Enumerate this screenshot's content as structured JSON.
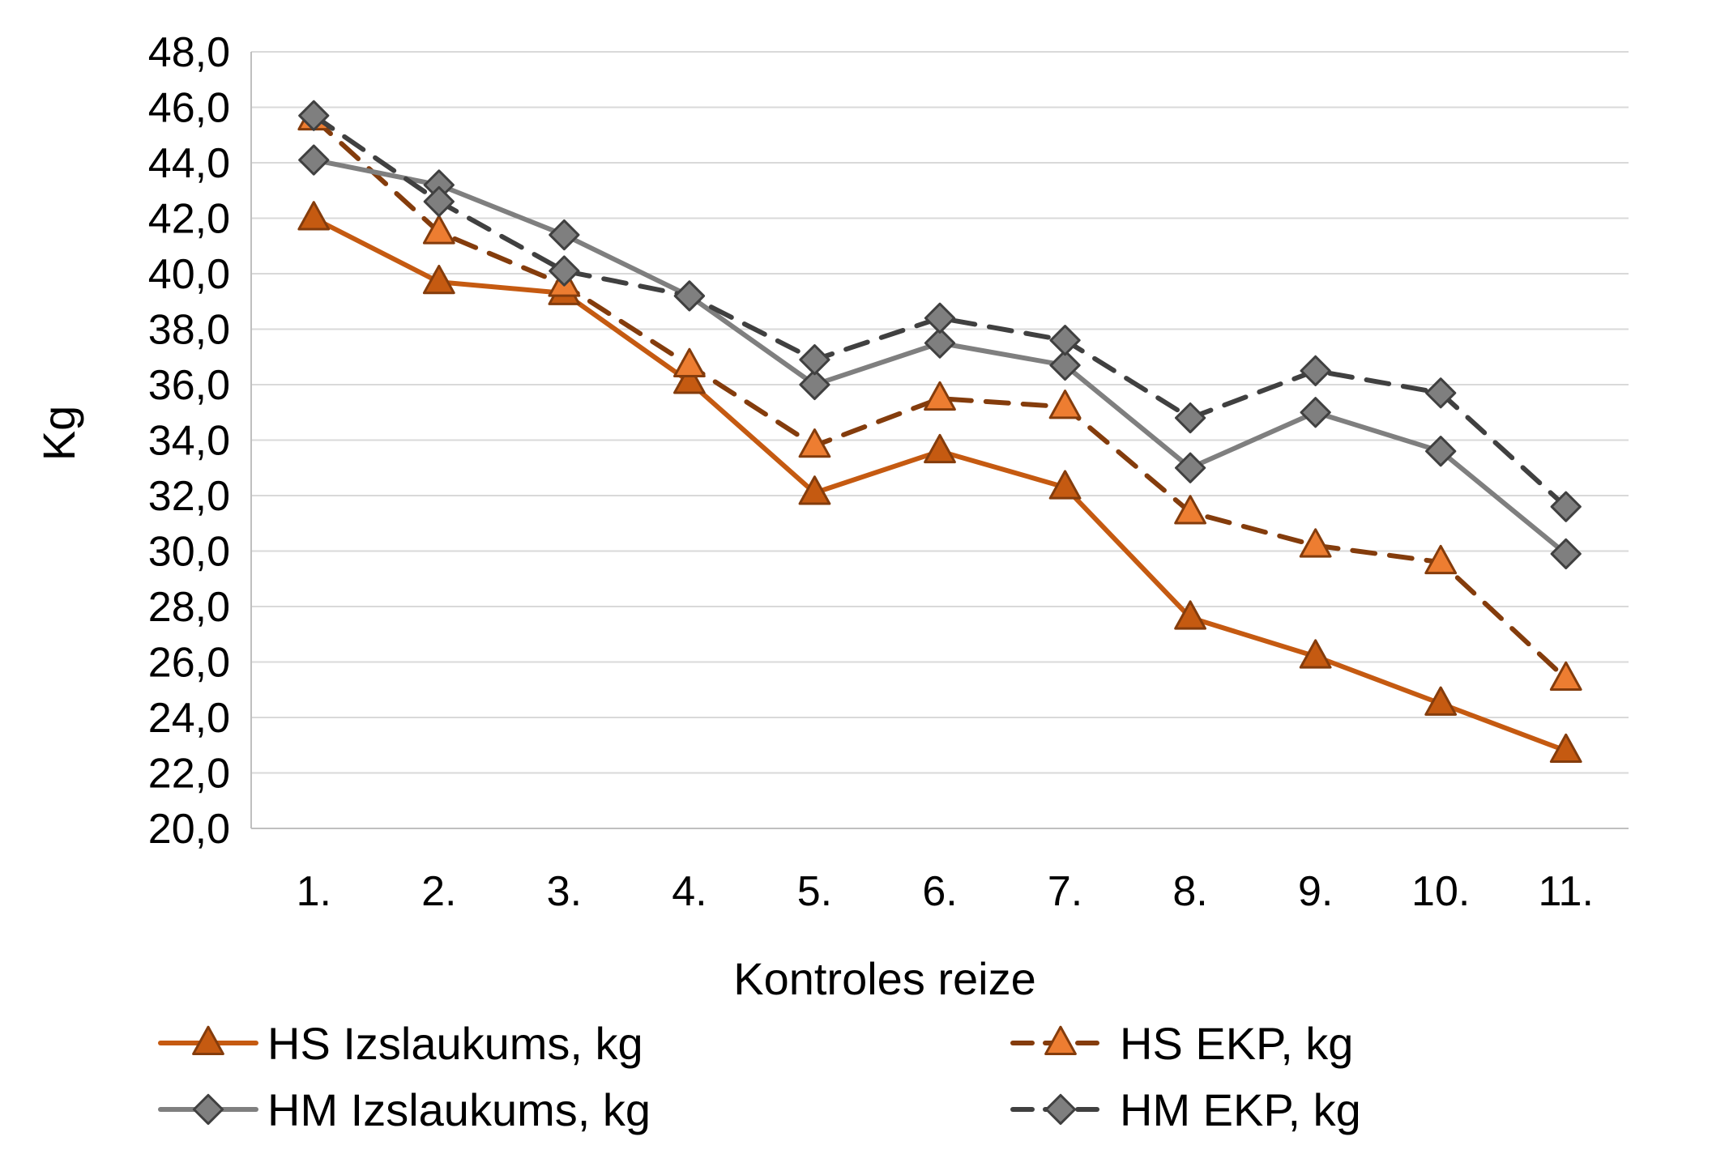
{
  "chart_data": {
    "type": "line",
    "title": "",
    "xlabel": "Kontroles reize",
    "ylabel": "Kg",
    "categories": [
      "1.",
      "2.",
      "3.",
      "4.",
      "5.",
      "6.",
      "7.",
      "8.",
      "9.",
      "10.",
      "11."
    ],
    "ylim": [
      20,
      48
    ],
    "ytick_step": 2,
    "ytick_labels": [
      "20,0",
      "22,0",
      "24,0",
      "26,0",
      "28,0",
      "30,0",
      "32,0",
      "34,0",
      "36,0",
      "38,0",
      "40,0",
      "42,0",
      "44,0",
      "46,0",
      "48,0"
    ],
    "grid": true,
    "legend_position": "bottom",
    "series": [
      {
        "name": "HS Izslaukums, kg",
        "values": [
          42.0,
          39.7,
          39.3,
          36.1,
          32.1,
          33.6,
          32.3,
          27.6,
          26.2,
          24.5,
          22.8
        ],
        "color": "#c55a11",
        "line_style": "solid",
        "marker": "triangle",
        "marker_fill": "#c55a11"
      },
      {
        "name": "HS EKP, kg",
        "values": [
          45.6,
          41.5,
          39.6,
          36.7,
          33.8,
          35.5,
          35.2,
          31.4,
          30.2,
          29.6,
          25.4
        ],
        "color": "#843c0c",
        "line_style": "dashed",
        "marker": "triangle",
        "marker_fill": "#ed7d31"
      },
      {
        "name": "HM Izslaukums, kg",
        "values": [
          44.1,
          43.2,
          41.4,
          39.2,
          36.0,
          37.5,
          36.7,
          33.0,
          35.0,
          33.6,
          29.9
        ],
        "color": "#7f7f7f",
        "line_style": "solid",
        "marker": "diamond",
        "marker_fill": "#7f7f7f"
      },
      {
        "name": "HM EKP, kg",
        "values": [
          45.7,
          42.6,
          40.1,
          39.2,
          36.9,
          38.4,
          37.6,
          34.8,
          36.5,
          35.7,
          31.6
        ],
        "color": "#404040",
        "line_style": "dashed",
        "marker": "diamond",
        "marker_fill": "#7f7f7f"
      }
    ]
  }
}
